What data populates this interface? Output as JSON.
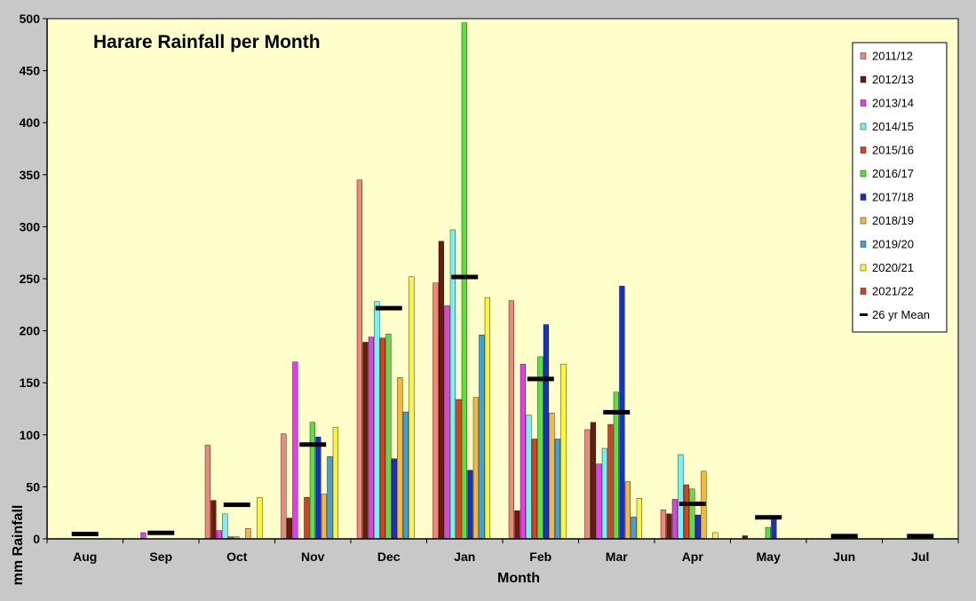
{
  "chart_data": {
    "type": "bar",
    "title": "Harare Rainfall per Month",
    "xlabel": "Month",
    "ylabel": "mm Rainfall",
    "ylim": [
      0,
      500
    ],
    "yticks": [
      0,
      50,
      100,
      150,
      200,
      250,
      300,
      350,
      400,
      450,
      500
    ],
    "grid": false,
    "legend_position": "top-right",
    "plot_background": "#ffffcc",
    "frame_background": "#c8c8c8",
    "categories": [
      "Aug",
      "Sep",
      "Oct",
      "Nov",
      "Dec",
      "Jan",
      "Feb",
      "Mar",
      "Apr",
      "May",
      "Jun",
      "Jul"
    ],
    "series": [
      {
        "name": "2011/12",
        "color": "#f08878",
        "values": [
          0,
          0,
          90,
          101,
          345,
          246,
          229,
          105,
          28,
          0,
          0,
          0
        ]
      },
      {
        "name": "2012/13",
        "color": "#6b1a0e",
        "values": [
          0,
          0,
          37,
          20,
          189,
          286,
          27,
          112,
          24,
          3,
          0,
          0
        ]
      },
      {
        "name": "2013/14",
        "color": "#e040e8",
        "values": [
          0,
          6,
          8,
          170,
          194,
          224,
          168,
          72,
          38,
          0,
          0,
          0
        ]
      },
      {
        "name": "2014/15",
        "color": "#70f4f4",
        "values": [
          0,
          0,
          24,
          0,
          228,
          297,
          119,
          87,
          81,
          0,
          0,
          0
        ]
      },
      {
        "name": "2015/16",
        "color": "#d84020",
        "values": [
          0,
          0,
          2,
          40,
          193,
          134,
          96,
          110,
          52,
          0,
          0,
          0
        ]
      },
      {
        "name": "2016/17",
        "color": "#5ce040",
        "values": [
          0,
          0,
          2,
          112,
          197,
          496,
          175,
          141,
          48,
          11,
          0,
          0
        ]
      },
      {
        "name": "2017/18",
        "color": "#1830c8",
        "values": [
          0,
          0,
          0,
          98,
          77,
          66,
          206,
          243,
          23,
          20,
          0,
          0
        ]
      },
      {
        "name": "2018/19",
        "color": "#f4b840",
        "values": [
          0,
          0,
          10,
          43,
          155,
          136,
          121,
          55,
          65,
          0,
          0,
          0
        ]
      },
      {
        "name": "2019/20",
        "color": "#40a0d8",
        "values": [
          0,
          0,
          0,
          79,
          122,
          196,
          96,
          21,
          0,
          0,
          0,
          0
        ]
      },
      {
        "name": "2020/21",
        "color": "#fcf440",
        "values": [
          0,
          0,
          40,
          107,
          252,
          232,
          168,
          39,
          6,
          0,
          0,
          0
        ]
      },
      {
        "name": "2021/22",
        "color": "#d84020",
        "values": [
          0,
          0,
          0,
          0,
          0,
          0,
          0,
          0,
          0,
          0,
          0,
          0
        ]
      }
    ],
    "mean": {
      "name": "26 yr Mean",
      "color": "#000000",
      "values": [
        3,
        4,
        31,
        89,
        220,
        250,
        152,
        120,
        32,
        19,
        1,
        1
      ]
    }
  }
}
